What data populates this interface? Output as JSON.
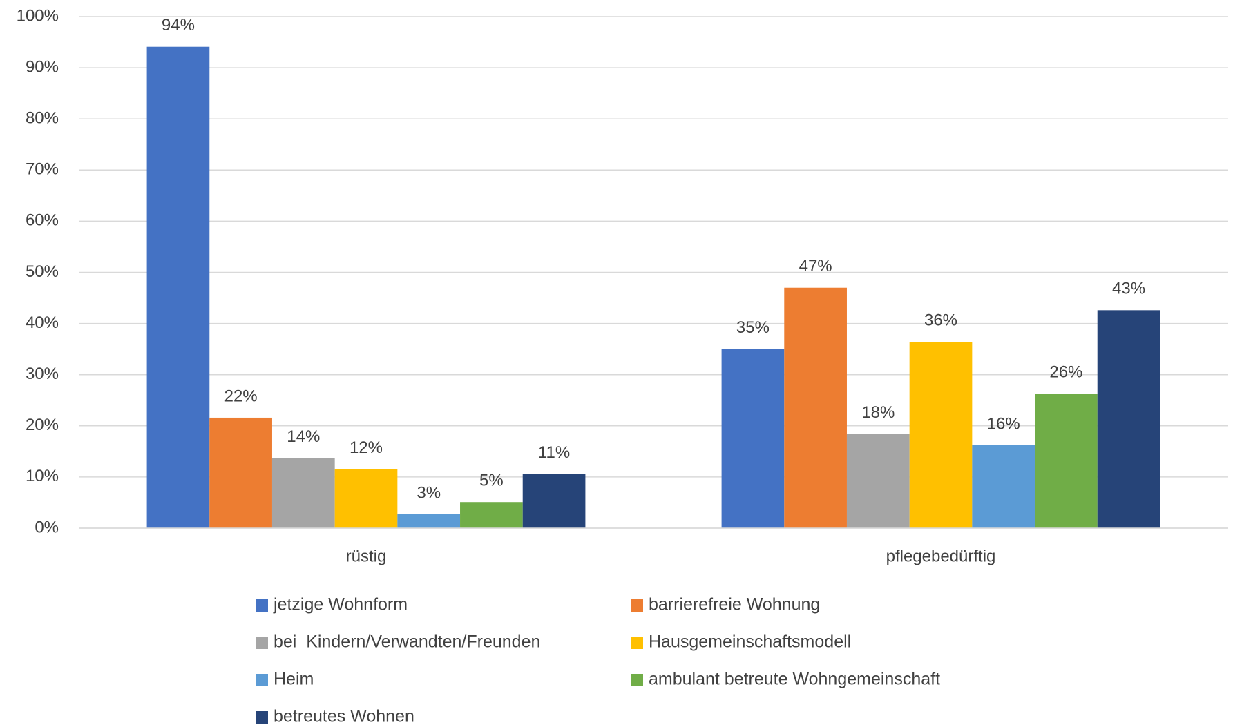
{
  "chart_data": {
    "type": "bar",
    "categories": [
      "rüstig",
      "pflegebedürftig"
    ],
    "ylim": [
      0,
      100
    ],
    "yticks": [
      {
        "value": 0,
        "label": "0%"
      },
      {
        "value": 10,
        "label": "10%"
      },
      {
        "value": 20,
        "label": "20%"
      },
      {
        "value": 30,
        "label": "30%"
      },
      {
        "value": 40,
        "label": "40%"
      },
      {
        "value": 50,
        "label": "50%"
      },
      {
        "value": 60,
        "label": "60%"
      },
      {
        "value": 70,
        "label": "70%"
      },
      {
        "value": 80,
        "label": "80%"
      },
      {
        "value": 90,
        "label": "90%"
      },
      {
        "value": 100,
        "label": "100%"
      }
    ],
    "grid": true,
    "legend": "bottom",
    "series": [
      {
        "name": "jetzige Wohnform",
        "color": "#4472c4",
        "values": [
          94.1,
          35.0
        ],
        "value_labels": [
          "94%",
          "35%"
        ]
      },
      {
        "name": "barrierefreie Wohnung",
        "color": "#ed7d31",
        "values": [
          21.6,
          47.0
        ],
        "value_labels": [
          "22%",
          "47%"
        ]
      },
      {
        "name": "bei  Kindern/Verwandten/Freunden",
        "color": "#a5a5a5",
        "values": [
          13.7,
          18.4
        ],
        "value_labels": [
          "14%",
          "18%"
        ]
      },
      {
        "name": "Hausgemeinschaftsmodell",
        "color": "#ffc000",
        "values": [
          11.5,
          36.4
        ],
        "value_labels": [
          "12%",
          "36%"
        ]
      },
      {
        "name": "Heim",
        "color": "#5b9bd5",
        "values": [
          2.7,
          16.2
        ],
        "value_labels": [
          "3%",
          "16%"
        ]
      },
      {
        "name": "ambulant betreute Wohngemeinschaft",
        "color": "#70ad47",
        "values": [
          5.1,
          26.3
        ],
        "value_labels": [
          "5%",
          "26%"
        ]
      },
      {
        "name": "betreutes Wohnen",
        "color": "#264478",
        "values": [
          10.6,
          42.6
        ],
        "value_labels": [
          "11%",
          "43%"
        ]
      }
    ]
  }
}
